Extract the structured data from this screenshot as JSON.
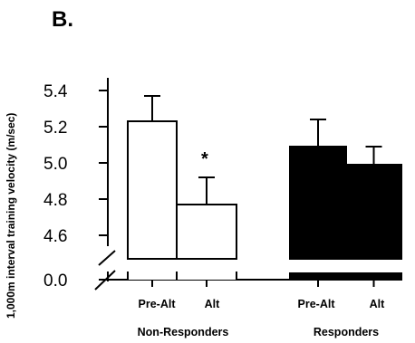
{
  "chart_data": {
    "type": "bar",
    "panel_label": "B.",
    "ylabel": "1,000m interval training velocity (m/sec)",
    "y_ticks": [
      "5.4",
      "5.2",
      "5.0",
      "4.8",
      "4.6",
      "0.0"
    ],
    "y_axis_break": true,
    "ylim": [
      4.5,
      5.45
    ],
    "groups": [
      {
        "name": "Non-Responders",
        "fill": "#ffffff",
        "bars": [
          {
            "label": "Pre-Alt",
            "value": 5.23,
            "error": 0.14,
            "annotation": ""
          },
          {
            "label": "Alt",
            "value": 4.77,
            "error": 0.15,
            "annotation": "*"
          }
        ]
      },
      {
        "name": "Responders",
        "fill": "#000000",
        "bars": [
          {
            "label": "Pre-Alt",
            "value": 5.09,
            "error": 0.15,
            "annotation": ""
          },
          {
            "label": "Alt",
            "value": 4.99,
            "error": 0.1,
            "annotation": ""
          }
        ]
      }
    ]
  }
}
